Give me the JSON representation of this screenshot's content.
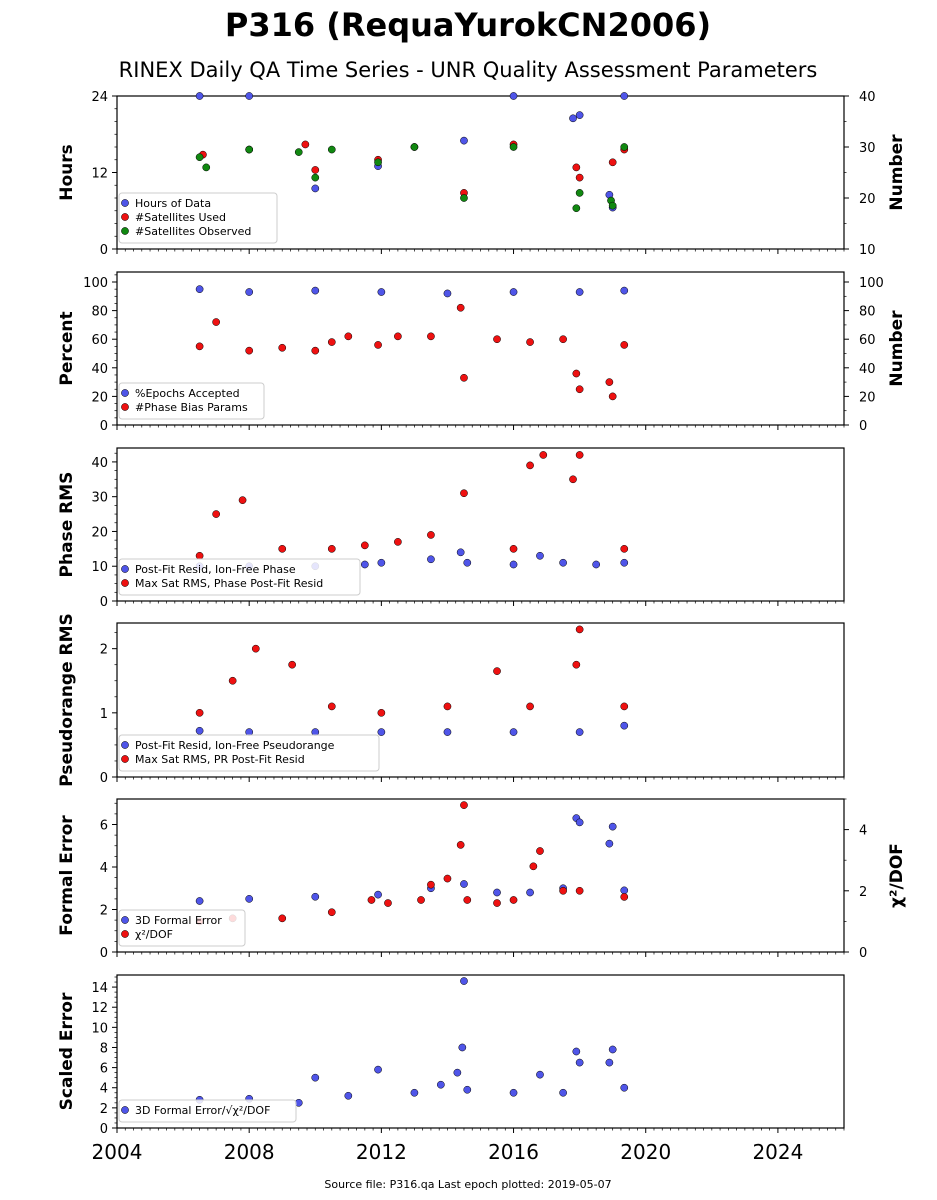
{
  "title": "P316 (RequaYurokCN2006)",
  "subtitle": "RINEX Daily QA Time Series - UNR Quality Assessment Parameters",
  "footer": "Source file: P316.qa Last epoch plotted: 2019-05-07",
  "colors": {
    "blue": "#4f55e8",
    "red": "#ee1111",
    "green": "#118811",
    "edge": "#000000"
  },
  "x_axis": {
    "range": [
      2004.0,
      2026.0
    ],
    "ticks": [
      2004,
      2008,
      2012,
      2016,
      2020,
      2024
    ],
    "tick_labels": [
      "2004",
      "2008",
      "2012",
      "2016",
      "2020",
      "2024"
    ]
  },
  "chart_data": [
    {
      "type": "scatter",
      "ylabel": "Hours",
      "ylim": [
        0,
        24
      ],
      "yticks": [
        0,
        12,
        24
      ],
      "yticklabels": [
        "0",
        "12",
        "24"
      ],
      "y2label": "Number",
      "y2lim": [
        10,
        40
      ],
      "y2ticks": [
        10,
        20,
        30,
        40
      ],
      "y2ticklabels": [
        "10",
        "20",
        "30",
        "40"
      ],
      "legend": "lower-left",
      "series": [
        {
          "name": "Hours of Data",
          "color": "blue",
          "axis": "left",
          "x": [
            2006.5,
            2008.0,
            2010.0,
            2011.9,
            2014.5,
            2016.0,
            2017.8,
            2018.0,
            2018.9,
            2019.0,
            2019.35
          ],
          "y": [
            24,
            24,
            9.5,
            13.0,
            17.0,
            24,
            20.5,
            21.0,
            8.5,
            6.5,
            24
          ]
        },
        {
          "name": "#Satellites Used",
          "color": "red",
          "axis": "right",
          "x": [
            2006.6,
            2008.0,
            2009.7,
            2010.0,
            2011.9,
            2013.0,
            2014.5,
            2016.0,
            2017.9,
            2018.0,
            2019.0,
            2019.35
          ],
          "y": [
            28.5,
            29.5,
            30.5,
            25.5,
            27.5,
            30.0,
            21.0,
            30.5,
            26.0,
            24.0,
            27.0,
            29.5
          ]
        },
        {
          "name": "#Satellites Observed",
          "color": "green",
          "axis": "right",
          "x": [
            2006.5,
            2006.7,
            2008.0,
            2009.5,
            2010.0,
            2010.5,
            2011.9,
            2013.0,
            2014.5,
            2016.0,
            2017.9,
            2018.0,
            2018.95,
            2019.0,
            2019.35
          ],
          "y": [
            28.0,
            26.0,
            29.5,
            29.0,
            24.0,
            29.5,
            27.0,
            30.0,
            20.0,
            30.0,
            18.0,
            21.0,
            19.5,
            18.5,
            30.0
          ]
        }
      ]
    },
    {
      "type": "scatter",
      "ylabel": "Percent",
      "ylim": [
        0,
        107
      ],
      "yticks": [
        0,
        20,
        40,
        60,
        80,
        100
      ],
      "yticklabels": [
        "0",
        "20",
        "40",
        "60",
        "80",
        "100"
      ],
      "y2label": "Number",
      "y2lim": [
        0,
        107
      ],
      "y2ticks": [
        0,
        20,
        40,
        60,
        80,
        100
      ],
      "y2ticklabels": [
        "0",
        "20",
        "40",
        "60",
        "80",
        "100"
      ],
      "legend": "lower-left",
      "series": [
        {
          "name": "%Epochs Accepted",
          "color": "blue",
          "axis": "left",
          "x": [
            2006.5,
            2008.0,
            2010.0,
            2012.0,
            2014.0,
            2016.0,
            2018.0,
            2019.35
          ],
          "y": [
            95,
            93,
            94,
            93,
            92,
            93,
            93,
            94
          ]
        },
        {
          "name": "#Phase Bias Params",
          "color": "red",
          "axis": "right",
          "x": [
            2006.5,
            2007.0,
            2008.0,
            2009.0,
            2010.0,
            2010.5,
            2011.0,
            2011.9,
            2012.5,
            2013.5,
            2014.4,
            2014.5,
            2015.5,
            2016.5,
            2017.5,
            2017.9,
            2018.0,
            2018.9,
            2019.0,
            2019.35
          ],
          "y": [
            55,
            72,
            52,
            54,
            52,
            58,
            62,
            56,
            62,
            62,
            82,
            33,
            60,
            58,
            60,
            36,
            25,
            30,
            20,
            56
          ]
        }
      ]
    },
    {
      "type": "scatter",
      "ylabel": "Phase RMS",
      "ylim": [
        0,
        44
      ],
      "yticks": [
        0,
        10,
        20,
        30,
        40
      ],
      "yticklabels": [
        "0",
        "10",
        "20",
        "30",
        "40"
      ],
      "legend": "lower-left",
      "series": [
        {
          "name": "Post-Fit Resid, Ion-Free Phase",
          "color": "blue",
          "axis": "left",
          "x": [
            2006.5,
            2008.0,
            2010.0,
            2011.5,
            2012.0,
            2013.5,
            2014.4,
            2014.6,
            2016.0,
            2016.8,
            2017.5,
            2018.5,
            2019.35
          ],
          "y": [
            10,
            10,
            10,
            10.5,
            11,
            12,
            14,
            11,
            10.5,
            13,
            11,
            10.5,
            11
          ]
        },
        {
          "name": "Max Sat RMS, Phase Post-Fit Resid",
          "color": "red",
          "axis": "left",
          "x": [
            2006.5,
            2007.0,
            2007.8,
            2009.0,
            2010.5,
            2011.5,
            2012.5,
            2013.5,
            2014.5,
            2016.0,
            2016.5,
            2016.9,
            2017.8,
            2018.0,
            2019.35
          ],
          "y": [
            13,
            25,
            29,
            15,
            15,
            16,
            17,
            19,
            31,
            15,
            39,
            42,
            35,
            42,
            15
          ]
        }
      ]
    },
    {
      "type": "scatter",
      "ylabel": "Pseudorange RMS",
      "ylim": [
        0,
        2.4
      ],
      "yticks": [
        0,
        1,
        2
      ],
      "yticklabels": [
        "0",
        "1",
        "2"
      ],
      "legend": "lower-left",
      "series": [
        {
          "name": "Post-Fit Resid, Ion-Free Pseudorange",
          "color": "blue",
          "axis": "left",
          "x": [
            2006.5,
            2008.0,
            2010.0,
            2012.0,
            2014.0,
            2016.0,
            2018.0,
            2019.35
          ],
          "y": [
            0.72,
            0.7,
            0.7,
            0.7,
            0.7,
            0.7,
            0.7,
            0.8
          ]
        },
        {
          "name": "Max Sat RMS, PR Post-Fit Resid",
          "color": "red",
          "axis": "left",
          "x": [
            2006.5,
            2007.5,
            2008.2,
            2009.3,
            2010.5,
            2012.0,
            2014.0,
            2015.5,
            2016.5,
            2017.9,
            2018.0,
            2019.35
          ],
          "y": [
            1.0,
            1.5,
            2.0,
            1.75,
            1.1,
            1.0,
            1.1,
            1.65,
            1.1,
            1.75,
            2.3,
            1.1
          ]
        }
      ]
    },
    {
      "type": "scatter",
      "ylabel": "Formal Error",
      "ylim": [
        0,
        7.2
      ],
      "yticks": [
        0,
        2,
        4,
        6
      ],
      "yticklabels": [
        "0",
        "2",
        "4",
        "6"
      ],
      "y2label": "χ²/DOF",
      "y2lim": [
        0,
        5
      ],
      "y2ticks": [
        0,
        2,
        4
      ],
      "y2ticklabels": [
        "0",
        "2",
        "4"
      ],
      "legend": "lower-left",
      "series": [
        {
          "name": "3D Formal Error",
          "color": "blue",
          "axis": "left",
          "x": [
            2006.5,
            2008.0,
            2010.0,
            2011.9,
            2013.5,
            2014.5,
            2015.5,
            2016.5,
            2017.5,
            2017.9,
            2018.0,
            2018.9,
            2019.0,
            2019.35
          ],
          "y": [
            2.4,
            2.5,
            2.6,
            2.7,
            3.0,
            3.2,
            2.8,
            2.8,
            3.0,
            6.3,
            6.1,
            5.1,
            5.9,
            2.9
          ]
        },
        {
          "name": "χ²/DOF",
          "color": "red",
          "axis": "right",
          "x": [
            2006.5,
            2007.5,
            2009.0,
            2010.5,
            2011.7,
            2012.2,
            2013.2,
            2013.5,
            2014.0,
            2014.4,
            2014.5,
            2014.6,
            2015.5,
            2016.0,
            2016.6,
            2016.8,
            2017.5,
            2018.0,
            2019.35
          ],
          "y": [
            1.0,
            1.1,
            1.1,
            1.3,
            1.7,
            1.6,
            1.7,
            2.2,
            2.4,
            3.5,
            4.8,
            1.7,
            1.6,
            1.7,
            2.8,
            3.3,
            2.0,
            2.0,
            1.8
          ]
        }
      ]
    },
    {
      "type": "scatter",
      "ylabel": "Scaled Error",
      "ylim": [
        0,
        15.2
      ],
      "yticks": [
        0,
        2,
        4,
        6,
        8,
        10,
        12,
        14
      ],
      "yticklabels": [
        "0",
        "2",
        "4",
        "6",
        "8",
        "10",
        "12",
        "14"
      ],
      "legend": "lower-left",
      "series": [
        {
          "name": "3D Formal Error/√χ²/DOF",
          "color": "blue",
          "axis": "left",
          "x": [
            2006.5,
            2008.0,
            2009.5,
            2010.0,
            2011.0,
            2011.9,
            2013.0,
            2013.8,
            2014.3,
            2014.45,
            2014.5,
            2014.6,
            2016.0,
            2016.8,
            2017.5,
            2017.9,
            2018.0,
            2018.9,
            2019.0,
            2019.35
          ],
          "y": [
            2.8,
            2.9,
            2.5,
            5.0,
            3.2,
            5.8,
            3.5,
            4.3,
            5.5,
            8.0,
            14.6,
            3.8,
            3.5,
            5.3,
            3.5,
            7.6,
            6.5,
            6.5,
            7.8,
            4.0
          ]
        }
      ]
    }
  ]
}
